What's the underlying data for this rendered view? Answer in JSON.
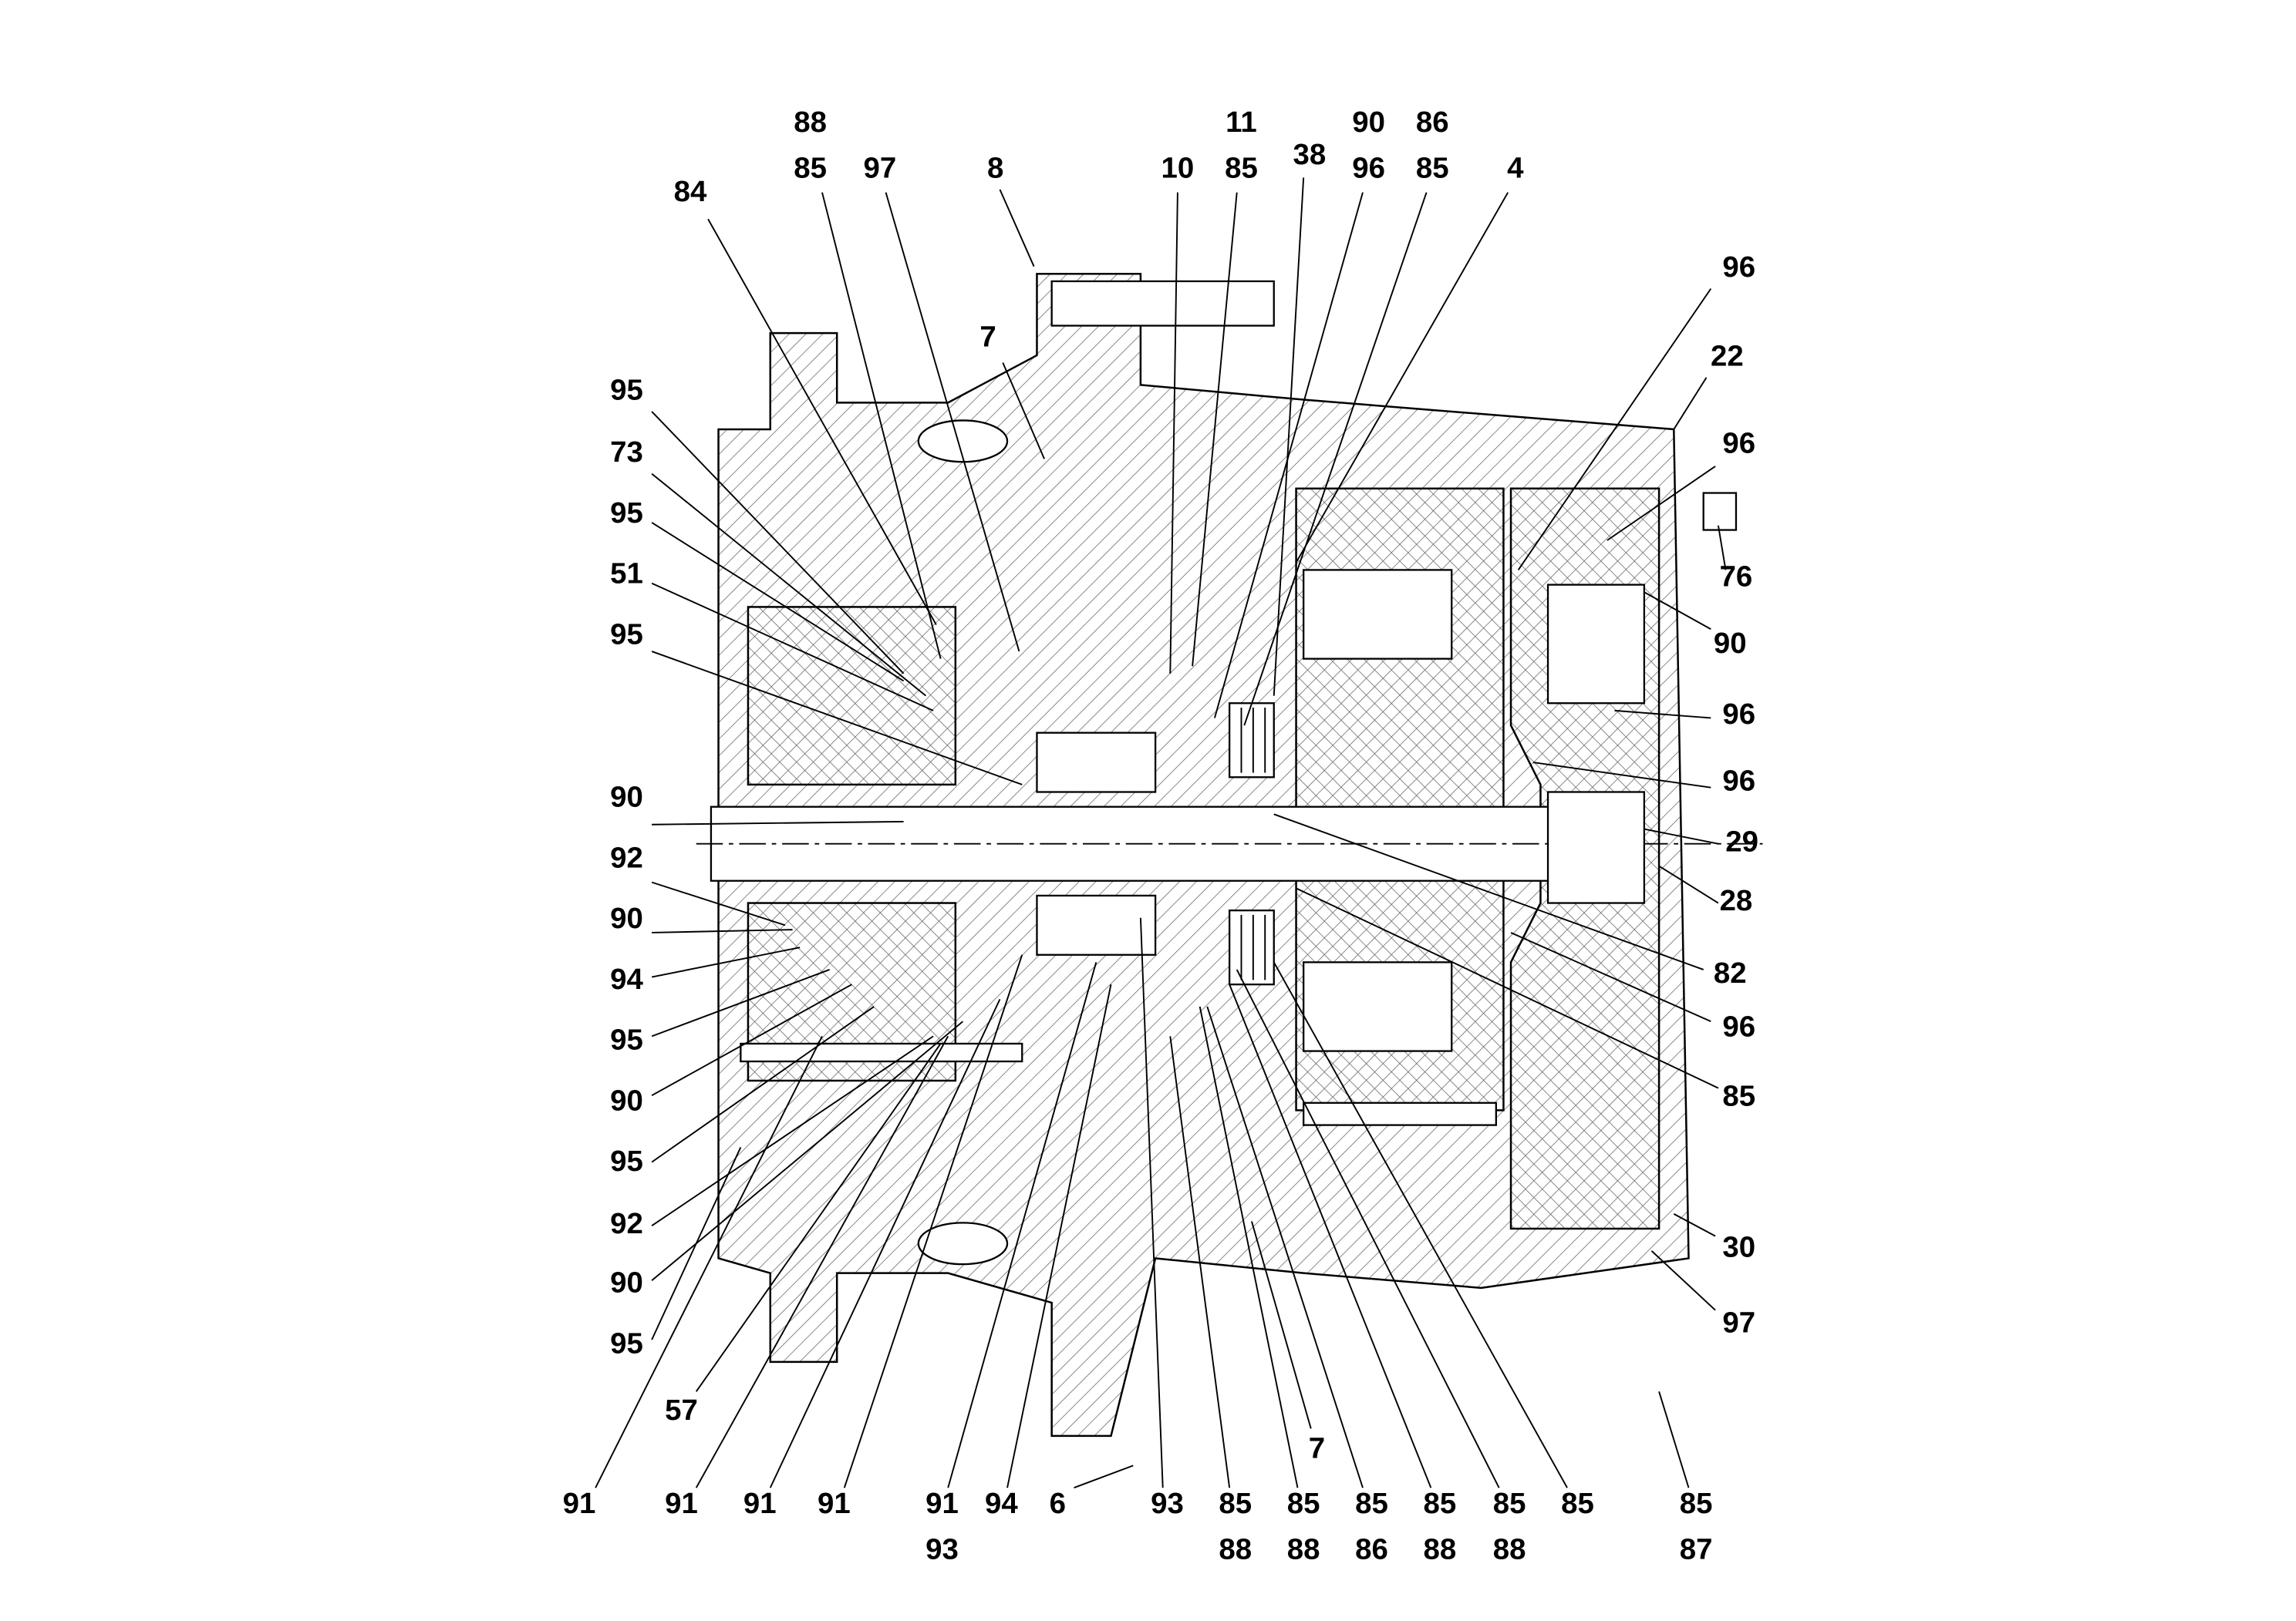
{
  "diagram": {
    "type": "cross-section parts drawing",
    "colors": {
      "lines": "#000000",
      "background": "#ffffff"
    },
    "labels": {
      "top": [
        "88",
        "85",
        "97",
        "8",
        "10",
        "11",
        "85",
        "38",
        "90",
        "96",
        "86",
        "85",
        "4",
        "84",
        "7"
      ],
      "left": [
        "95",
        "73",
        "95",
        "51",
        "95",
        "90",
        "92",
        "90",
        "94",
        "95",
        "90",
        "95",
        "92",
        "90",
        "95"
      ],
      "right": [
        "96",
        "22",
        "96",
        "76",
        "90",
        "96",
        "96",
        "29",
        "28",
        "82",
        "96",
        "85",
        "30",
        "97"
      ],
      "bottom": [
        "91",
        "91",
        "91",
        "91",
        "91",
        "93",
        "94",
        "6",
        "93",
        "85",
        "88",
        "85",
        "88",
        "85",
        "86",
        "85",
        "88",
        "85",
        "88",
        "85",
        "85",
        "87",
        "57",
        "7"
      ]
    }
  }
}
